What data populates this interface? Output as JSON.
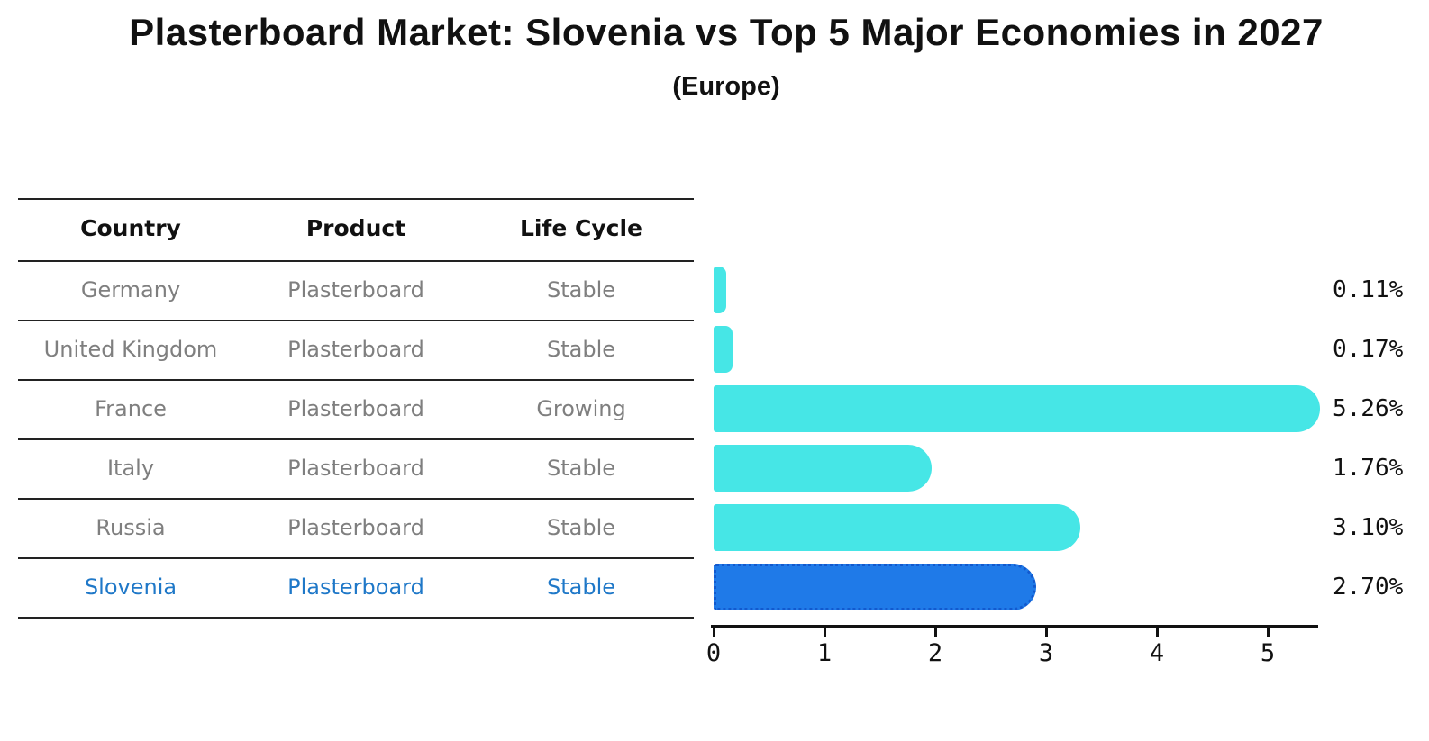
{
  "title": "Plasterboard Market: Slovenia vs Top 5 Major Economies in 2027",
  "subtitle": "(Europe)",
  "table": {
    "columns": [
      "Country",
      "Product",
      "Life Cycle"
    ]
  },
  "chart_data": {
    "type": "bar",
    "orientation": "horizontal",
    "title": "Plasterboard Market: Slovenia vs Top 5 Major Economies in 2027",
    "subtitle": "(Europe)",
    "xlabel": "",
    "ylabel": "",
    "xlim": [
      0,
      5.5
    ],
    "x_ticks": [
      0,
      1,
      2,
      3,
      4,
      5
    ],
    "grid": false,
    "legend": false,
    "categories": [
      "Germany",
      "United Kingdom",
      "France",
      "Italy",
      "Russia",
      "Slovenia"
    ],
    "values": [
      0.11,
      0.17,
      5.26,
      1.76,
      3.1,
      2.7
    ],
    "value_labels": [
      "0.11%",
      "0.17%",
      "5.26%",
      "1.76%",
      "3.10%",
      "2.70%"
    ],
    "rows": [
      {
        "country": "Germany",
        "product": "Plasterboard",
        "life_cycle": "Stable",
        "value": 0.11,
        "value_label": "0.11%",
        "highlighted": false
      },
      {
        "country": "United Kingdom",
        "product": "Plasterboard",
        "life_cycle": "Stable",
        "value": 0.17,
        "value_label": "0.17%",
        "highlighted": false
      },
      {
        "country": "France",
        "product": "Plasterboard",
        "life_cycle": "Growing",
        "value": 5.26,
        "value_label": "5.26%",
        "highlighted": false
      },
      {
        "country": "Italy",
        "product": "Plasterboard",
        "life_cycle": "Stable",
        "value": 1.76,
        "value_label": "1.76%",
        "highlighted": false
      },
      {
        "country": "Russia",
        "product": "Plasterboard",
        "life_cycle": "Stable",
        "value": 3.1,
        "value_label": "3.10%",
        "highlighted": false
      },
      {
        "country": "Slovenia",
        "product": "Plasterboard",
        "life_cycle": "Stable",
        "value": 2.7,
        "value_label": "2.70%",
        "highlighted": true
      }
    ],
    "colors": {
      "bar": "#46E6E6",
      "highlight_bar": "#1F7AE8",
      "highlight_bar_border": "#1259CE",
      "highlight_text": "#1F78C8",
      "row_text": "#7F7F7F",
      "header_text": "#111111",
      "axis": "#111111",
      "background": "#FFFFFF"
    }
  }
}
